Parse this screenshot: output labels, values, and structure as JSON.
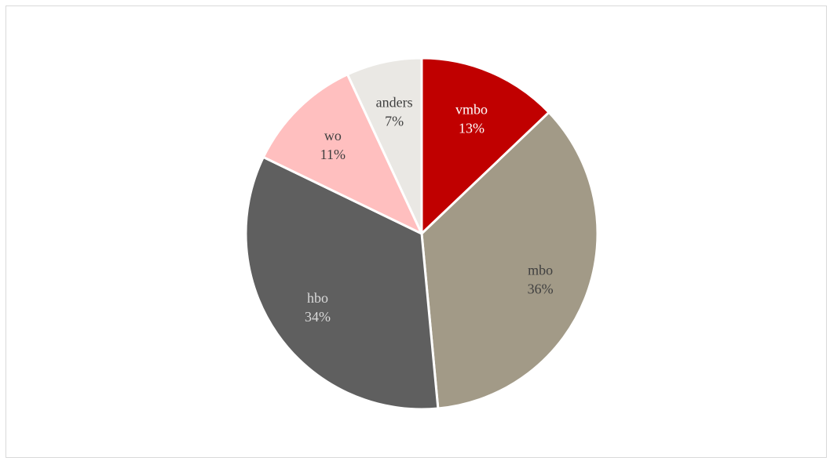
{
  "chart_data": {
    "type": "pie",
    "title": "",
    "start_angle_deg": 0,
    "direction": "clockwise",
    "legend": "none",
    "slices": [
      {
        "label": "vmbo",
        "value": 13,
        "display": "13%",
        "color": "#C00000",
        "label_color": "#ffffff"
      },
      {
        "label": "mbo",
        "value": 36,
        "display": "36%",
        "color": "#A29A87",
        "label_color": "#404040"
      },
      {
        "label": "hbo",
        "value": 34,
        "display": "34%",
        "color": "#5F5F5F",
        "label_color": "#d9d9d9"
      },
      {
        "label": "wo",
        "value": 11,
        "display": "11%",
        "color": "#FFBFBF",
        "label_color": "#404040"
      },
      {
        "label": "anders",
        "value": 7,
        "display": "7%",
        "color": "#EAE8E4",
        "label_color": "#404040"
      }
    ]
  }
}
